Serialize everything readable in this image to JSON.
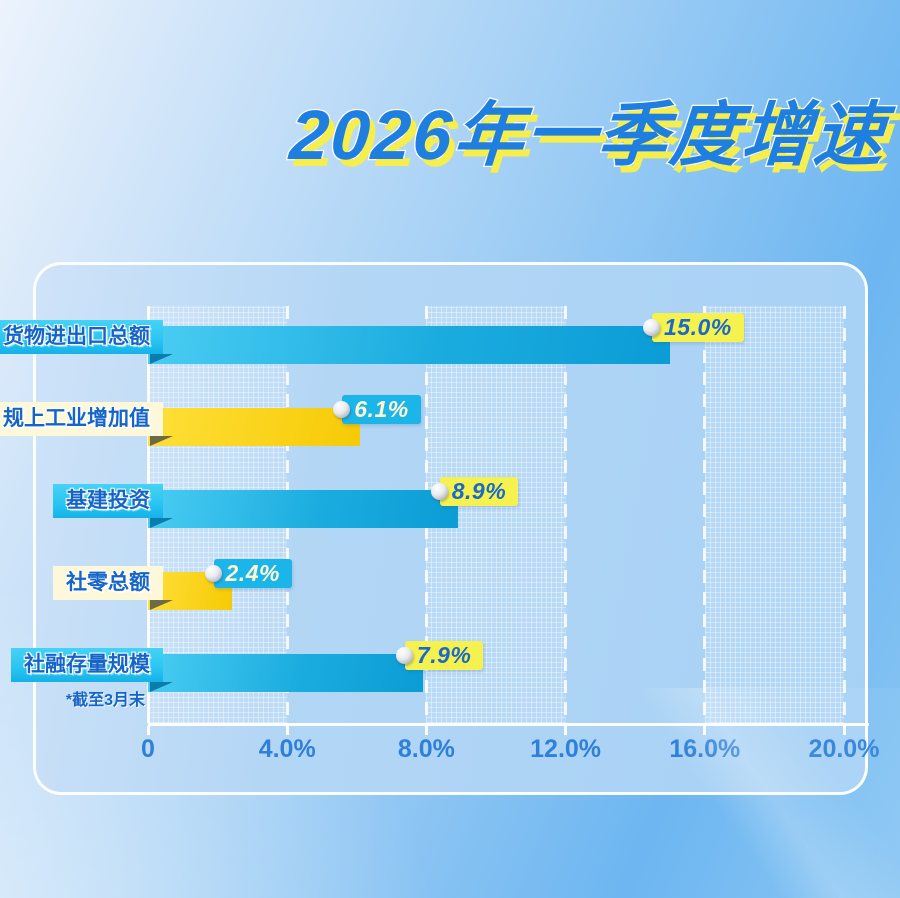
{
  "title": "2026年一季度增速",
  "footnote": "*截至3月末",
  "colors": {
    "title_blue": "#1f7fe0",
    "title_shadow_yellow": "#f5ee4d",
    "bar_blue_light": "#4acdf3",
    "bar_blue_dark": "#0c9cd6",
    "bar_yellow_light": "#ffe03a",
    "bar_yellow_dark": "#f6ca04",
    "ribbon_cyan": "#2cc6f2",
    "ribbon_cream": "#fdf8da",
    "label_text_blue": "#1565c8",
    "badge_yellow": "#f5f14e",
    "badge_cyan": "#1cb5ea",
    "badge_text_blue": "#1a6acc",
    "badge_text_cream": "#fdf7d2",
    "axis_text_blue": "#2e80d9"
  },
  "chart_data": {
    "type": "bar",
    "orientation": "horizontal",
    "title": "2026年一季度增速",
    "categories": [
      "货物进出口总额",
      "规上工业增加值",
      "基建投资",
      "社零总额",
      "社融存量规模"
    ],
    "values": [
      15.0,
      6.1,
      8.9,
      2.4,
      7.9
    ],
    "value_labels": [
      "15.0%",
      "6.1%",
      "8.9%",
      "2.4%",
      "7.9%"
    ],
    "bar_styles": [
      "blue",
      "yellow",
      "blue",
      "yellow",
      "blue"
    ],
    "category_note": {
      "category": "社融存量规模",
      "note": "*截至3月末"
    },
    "x_axis": {
      "tick_labels": [
        "0",
        "4.0%",
        "8.0%",
        "12.0%",
        "16.0%",
        "20.0%"
      ],
      "tick_values": [
        0,
        4,
        8,
        12,
        16,
        20
      ],
      "xlim": [
        0,
        20
      ]
    },
    "grid": "vertical-dashed-white, alternating textured bands",
    "legend": "none"
  }
}
